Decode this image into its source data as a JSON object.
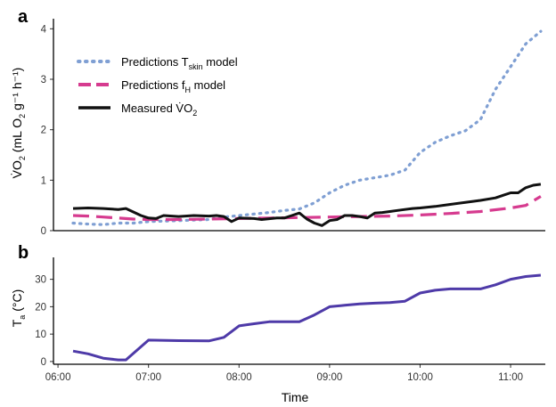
{
  "chart_data": [
    {
      "panel": "a",
      "type": "line",
      "ylabel": {
        "pre": "V̇O",
        "sub1": "2",
        "mid": " (mL O",
        "sub2": "2",
        "post": " g⁻¹ h⁻¹)"
      },
      "ylim": [
        0,
        4.2
      ],
      "yticks": [
        "0",
        "1",
        "2",
        "3",
        "4"
      ],
      "xlim": [
        "05:57",
        "11:23"
      ],
      "legend_position": "top-left",
      "series": [
        {
          "name": {
            "pre": "Predictions T",
            "sub": "skin",
            "post": " model"
          },
          "color": "#7f9fd3",
          "style": "dotted",
          "x": [
            "06:10",
            "06:20",
            "06:30",
            "06:40",
            "06:50",
            "07:00",
            "07:20",
            "07:40",
            "07:50",
            "08:00",
            "08:10",
            "08:20",
            "08:30",
            "08:40",
            "08:50",
            "09:00",
            "09:10",
            "09:20",
            "09:30",
            "09:40",
            "09:50",
            "10:00",
            "10:10",
            "10:20",
            "10:30",
            "10:40",
            "10:50",
            "11:00",
            "11:10",
            "11:20"
          ],
          "values": [
            0.15,
            0.13,
            0.12,
            0.15,
            0.15,
            0.18,
            0.2,
            0.22,
            0.27,
            0.3,
            0.33,
            0.36,
            0.4,
            0.43,
            0.55,
            0.75,
            0.9,
            1.0,
            1.05,
            1.1,
            1.2,
            1.55,
            1.75,
            1.88,
            1.98,
            2.2,
            2.8,
            3.25,
            3.7,
            3.95
          ]
        },
        {
          "name": {
            "pre": "Predictions f",
            "sub": "H",
            "post": " model"
          },
          "color": "#d63b8f",
          "style": "dashed",
          "x": [
            "06:10",
            "06:20",
            "06:30",
            "06:40",
            "06:50",
            "07:00",
            "07:20",
            "07:40",
            "08:00",
            "08:20",
            "08:40",
            "09:00",
            "09:20",
            "09:40",
            "10:00",
            "10:20",
            "10:40",
            "11:00",
            "11:10",
            "11:20"
          ],
          "values": [
            0.3,
            0.29,
            0.27,
            0.25,
            0.23,
            0.22,
            0.22,
            0.23,
            0.24,
            0.25,
            0.26,
            0.27,
            0.28,
            0.29,
            0.31,
            0.34,
            0.38,
            0.45,
            0.5,
            0.68
          ]
        },
        {
          "name": {
            "pre": "Measured V̇O",
            "sub": "2",
            "post": ""
          },
          "color": "#111111",
          "style": "solid",
          "x": [
            "06:10",
            "06:20",
            "06:30",
            "06:40",
            "06:45",
            "06:55",
            "07:00",
            "07:05",
            "07:10",
            "07:20",
            "07:30",
            "07:40",
            "07:45",
            "07:50",
            "07:55",
            "08:00",
            "08:10",
            "08:15",
            "08:25",
            "08:30",
            "08:35",
            "08:40",
            "08:45",
            "08:50",
            "08:55",
            "09:00",
            "09:05",
            "09:10",
            "09:15",
            "09:20",
            "09:25",
            "09:30",
            "09:35",
            "09:40",
            "09:45",
            "09:50",
            "09:55",
            "10:00",
            "10:10",
            "10:20",
            "10:30",
            "10:40",
            "10:50",
            "10:55",
            "11:00",
            "11:05",
            "11:10",
            "11:15",
            "11:20"
          ],
          "values": [
            0.44,
            0.45,
            0.44,
            0.42,
            0.44,
            0.3,
            0.25,
            0.24,
            0.3,
            0.28,
            0.3,
            0.29,
            0.3,
            0.28,
            0.18,
            0.25,
            0.24,
            0.22,
            0.25,
            0.25,
            0.3,
            0.35,
            0.23,
            0.15,
            0.1,
            0.2,
            0.22,
            0.3,
            0.3,
            0.28,
            0.25,
            0.35,
            0.36,
            0.38,
            0.4,
            0.42,
            0.44,
            0.45,
            0.48,
            0.52,
            0.56,
            0.6,
            0.65,
            0.7,
            0.75,
            0.75,
            0.85,
            0.9,
            0.92
          ]
        }
      ]
    },
    {
      "panel": "b",
      "type": "line",
      "ylabel": {
        "pre": "T",
        "sub": "a",
        "post": " (°C)"
      },
      "xlabel": "Time",
      "ylim": [
        -1,
        38
      ],
      "yticks": [
        "0",
        "10",
        "20",
        "30"
      ],
      "xticks": [
        "06:00",
        "07:00",
        "08:00",
        "09:00",
        "10:00",
        "11:00"
      ],
      "xlim": [
        "05:57",
        "11:23"
      ],
      "series": [
        {
          "color": "#4e3aa8",
          "style": "solid",
          "x": [
            "06:10",
            "06:20",
            "06:30",
            "06:40",
            "06:45",
            "07:00",
            "07:20",
            "07:40",
            "07:50",
            "08:00",
            "08:10",
            "08:20",
            "08:30",
            "08:40",
            "08:50",
            "09:00",
            "09:10",
            "09:20",
            "09:30",
            "09:40",
            "09:50",
            "10:00",
            "10:10",
            "10:20",
            "10:30",
            "10:40",
            "10:50",
            "11:00",
            "11:10",
            "11:20"
          ],
          "values": [
            3.8,
            2.8,
            1.2,
            0.6,
            0.6,
            7.8,
            7.6,
            7.5,
            8.8,
            13,
            13.8,
            14.5,
            14.5,
            14.5,
            17,
            20,
            20.5,
            21,
            21.3,
            21.5,
            22,
            25,
            26,
            26.5,
            26.5,
            26.5,
            28,
            30,
            31,
            31.5
          ]
        }
      ]
    }
  ]
}
